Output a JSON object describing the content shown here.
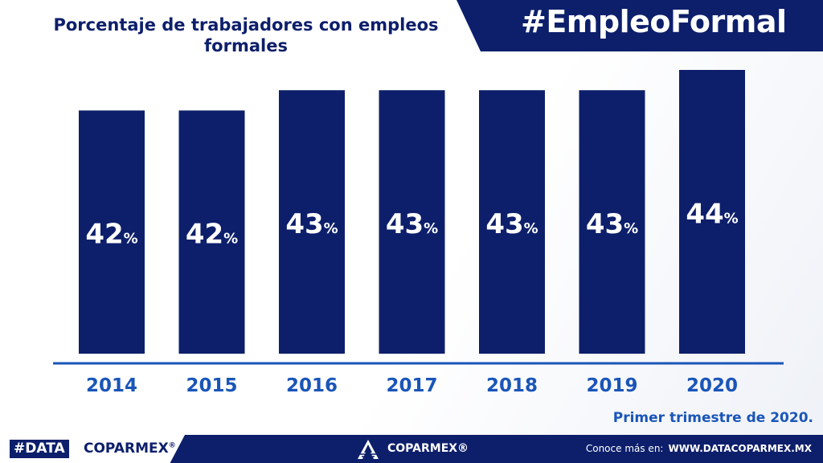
{
  "hashtag": "#EmpleoFormal",
  "chart_data": {
    "type": "bar",
    "title": "Porcentaje de trabajadores con empleos formales",
    "categories": [
      "2014",
      "2015",
      "2016",
      "2017",
      "2018",
      "2019",
      "2020"
    ],
    "values": [
      42,
      42,
      43,
      43,
      43,
      43,
      44
    ],
    "value_suffix": "%",
    "ylim": [
      30,
      44
    ],
    "bar_color": "#0d1f6b",
    "axis_label_color": "#1a55b8",
    "grid": false,
    "legend": "none"
  },
  "note": "Primer trimestre de 2020.",
  "footer": {
    "brand_data": "#DATA",
    "brand_coparmex": "COPARMEX",
    "brand_reg": "®",
    "center_brand": "COPARMEX®",
    "link_label": "Conoce más en:",
    "link_url": "WWW.DATACOPARMEX.MX"
  }
}
